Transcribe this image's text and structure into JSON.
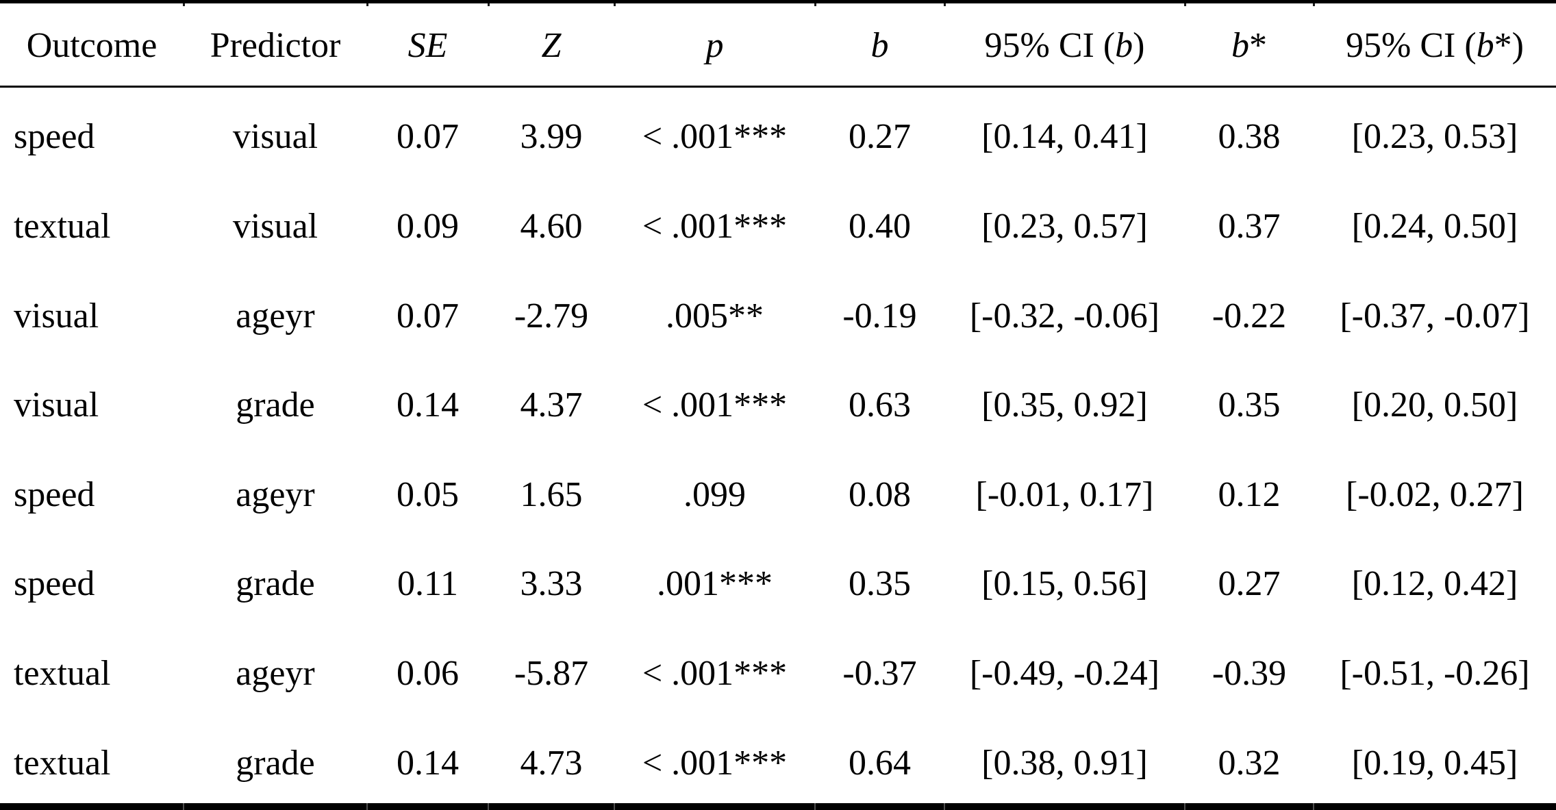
{
  "table": {
    "title_hint": "Regression results",
    "header": [
      {
        "name": "outcome",
        "segments": [
          {
            "t": "Outcome",
            "i": false
          }
        ]
      },
      {
        "name": "predictor",
        "segments": [
          {
            "t": "Predictor",
            "i": false
          }
        ]
      },
      {
        "name": "se",
        "segments": [
          {
            "t": "SE",
            "i": true
          }
        ]
      },
      {
        "name": "z",
        "segments": [
          {
            "t": "Z",
            "i": true
          }
        ]
      },
      {
        "name": "p",
        "segments": [
          {
            "t": "p",
            "i": true
          }
        ]
      },
      {
        "name": "b",
        "segments": [
          {
            "t": "b",
            "i": true
          }
        ]
      },
      {
        "name": "ci-b",
        "segments": [
          {
            "t": "95% CI (",
            "i": false
          },
          {
            "t": "b",
            "i": true
          },
          {
            "t": ")",
            "i": false
          }
        ]
      },
      {
        "name": "b-star",
        "segments": [
          {
            "t": "b",
            "i": true
          },
          {
            "t": "*",
            "i": false
          }
        ]
      },
      {
        "name": "ci-b-star",
        "segments": [
          {
            "t": "95% CI (",
            "i": false
          },
          {
            "t": "b",
            "i": true
          },
          {
            "t": "*)",
            "i": false
          }
        ]
      }
    ],
    "rows": [
      [
        "speed",
        "visual",
        "0.07",
        "3.99",
        "< .001***",
        "0.27",
        "[0.14, 0.41]",
        "0.38",
        "[0.23, 0.53]"
      ],
      [
        "textual",
        "visual",
        "0.09",
        "4.60",
        "< .001***",
        "0.40",
        "[0.23, 0.57]",
        "0.37",
        "[0.24, 0.50]"
      ],
      [
        "visual",
        "ageyr",
        "0.07",
        "-2.79",
        ".005**",
        "-0.19",
        "[-0.32, -0.06]",
        "-0.22",
        "[-0.37, -0.07]"
      ],
      [
        "visual",
        "grade",
        "0.14",
        "4.37",
        "< .001***",
        "0.63",
        "[0.35, 0.92]",
        "0.35",
        "[0.20, 0.50]"
      ],
      [
        "speed",
        "ageyr",
        "0.05",
        "1.65",
        ".099",
        "0.08",
        "[-0.01, 0.17]",
        "0.12",
        "[-0.02, 0.27]"
      ],
      [
        "speed",
        "grade",
        "0.11",
        "3.33",
        ".001***",
        "0.35",
        "[0.15, 0.56]",
        "0.27",
        "[0.12, 0.42]"
      ],
      [
        "textual",
        "ageyr",
        "0.06",
        "-5.87",
        "< .001***",
        "-0.37",
        "[-0.49, -0.24]",
        "-0.39",
        "[-0.51, -0.26]"
      ],
      [
        "textual",
        "grade",
        "0.14",
        "4.73",
        "< .001***",
        "0.64",
        "[0.38, 0.91]",
        "0.32",
        "[0.19, 0.45]"
      ]
    ]
  }
}
